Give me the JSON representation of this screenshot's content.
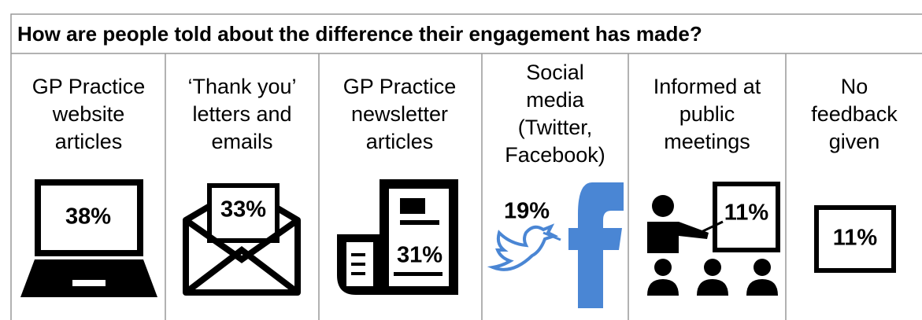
{
  "title": "How are people told about the difference their engagement has made?",
  "items": [
    {
      "label": "GP Practice website articles",
      "value": "38%"
    },
    {
      "label": "‘Thank you’ letters and emails",
      "value": "33%"
    },
    {
      "label": "GP Practice newsletter articles",
      "value": "31%"
    },
    {
      "label": "Social media (Twitter, Facebook)",
      "value": "19%"
    },
    {
      "label": "Informed at public meetings",
      "value": "11%"
    },
    {
      "label": "No feedback given",
      "value": "11%"
    }
  ]
}
